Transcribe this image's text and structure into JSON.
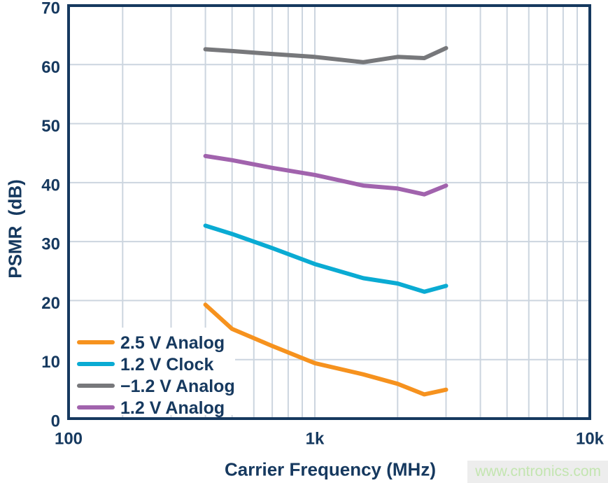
{
  "colors": {
    "navy": "#16395f",
    "grid": "#ccd5df",
    "background": "#ffffff"
  },
  "watermark": {
    "text": "www.cntronics.com",
    "text_color": "#c3e5b0",
    "bg_color": "#ededed"
  },
  "chart_data": {
    "type": "line",
    "title": "",
    "xlabel": "Carrier Frequency (MHz)",
    "ylabel": "PSMR  (dB)",
    "x_scale": "log",
    "xlim": [
      100,
      10000
    ],
    "ylim": [
      0,
      70
    ],
    "x_tick_labels": [
      "100",
      "1k",
      "10k"
    ],
    "x_tick_values": [
      100,
      1000,
      10000
    ],
    "y_ticks": [
      0,
      10,
      20,
      30,
      40,
      50,
      60,
      70
    ],
    "x_gridlines": [
      200,
      300,
      400,
      500,
      600,
      700,
      800,
      900,
      1000,
      2000,
      3000,
      4000,
      5000,
      6000,
      7000,
      8000,
      9000
    ],
    "grid": true,
    "legend_position": "inside-bottom-left",
    "series": [
      {
        "id": "2v5-analog",
        "name": "2.5 V Analog",
        "color": "#f6921e",
        "points": [
          [
            400,
            19.3
          ],
          [
            500,
            15.2
          ],
          [
            700,
            12.3
          ],
          [
            1000,
            9.4
          ],
          [
            1500,
            7.5
          ],
          [
            2000,
            5.9
          ],
          [
            2500,
            4.1
          ],
          [
            3000,
            4.9
          ]
        ]
      },
      {
        "id": "1v2-clock",
        "name": "1.2 V Clock",
        "color": "#0aabd3",
        "points": [
          [
            400,
            32.7
          ],
          [
            500,
            31.3
          ],
          [
            700,
            28.9
          ],
          [
            1000,
            26.2
          ],
          [
            1500,
            23.8
          ],
          [
            2000,
            22.9
          ],
          [
            2500,
            21.5
          ],
          [
            3000,
            22.5
          ]
        ]
      },
      {
        "id": "neg-1v2-analog",
        "name": "−1.2 V Analog",
        "color": "#77787b",
        "points": [
          [
            400,
            62.6
          ],
          [
            500,
            62.3
          ],
          [
            700,
            61.8
          ],
          [
            1000,
            61.3
          ],
          [
            1500,
            60.4
          ],
          [
            2000,
            61.3
          ],
          [
            2500,
            61.1
          ],
          [
            3000,
            62.8
          ]
        ]
      },
      {
        "id": "1v2-analog",
        "name": "1.2 V Analog",
        "color": "#a163ad",
        "points": [
          [
            400,
            44.5
          ],
          [
            500,
            43.8
          ],
          [
            700,
            42.5
          ],
          [
            1000,
            41.3
          ],
          [
            1500,
            39.5
          ],
          [
            2000,
            39.0
          ],
          [
            2500,
            38.0
          ],
          [
            3000,
            39.5
          ]
        ]
      }
    ]
  }
}
